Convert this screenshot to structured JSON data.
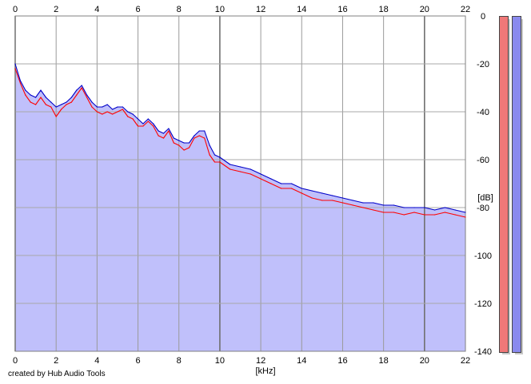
{
  "chart_data": {
    "type": "area",
    "xlabel": "[kHz]",
    "ylabel": "[dB]",
    "xlim": [
      0,
      22
    ],
    "ylim": [
      -140,
      0
    ],
    "x_ticks": [
      0,
      2,
      4,
      6,
      8,
      10,
      12,
      14,
      16,
      18,
      20,
      22
    ],
    "y_ticks": [
      0,
      -20,
      -40,
      -60,
      -80,
      -100,
      -120,
      -140
    ],
    "grid": true,
    "series": [
      {
        "color": "#ff0000",
        "x": [
          0,
          0.25,
          0.5,
          0.75,
          1,
          1.25,
          1.5,
          1.75,
          2,
          2.25,
          2.5,
          2.75,
          3,
          3.25,
          3.5,
          3.75,
          4,
          4.25,
          4.5,
          4.75,
          5,
          5.25,
          5.5,
          5.75,
          6,
          6.25,
          6.5,
          6.75,
          7,
          7.25,
          7.5,
          7.75,
          8,
          8.25,
          8.5,
          8.75,
          9,
          9.25,
          9.5,
          9.75,
          10,
          10.5,
          11,
          11.5,
          12,
          12.5,
          13,
          13.5,
          14,
          14.5,
          15,
          15.5,
          16,
          16.5,
          17,
          17.5,
          18,
          18.5,
          19,
          19.5,
          20,
          20.5,
          21,
          21.5,
          22
        ],
        "values": [
          -22,
          -28,
          -33,
          -36,
          -37,
          -34,
          -37,
          -38,
          -42,
          -39,
          -37,
          -36,
          -33,
          -30,
          -34,
          -38,
          -40,
          -41,
          -40,
          -41,
          -40,
          -39,
          -42,
          -43,
          -46,
          -46,
          -44,
          -46,
          -50,
          -51,
          -48,
          -53,
          -54,
          -56,
          -55,
          -51,
          -50,
          -51,
          -58,
          -61,
          -61,
          -64,
          -65,
          -66,
          -68,
          -70,
          -72,
          -72,
          -74,
          -76,
          -77,
          -77,
          -78,
          -79,
          -80,
          -81,
          -82,
          -82,
          -83,
          -82,
          -83,
          -83,
          -82,
          -83,
          -84
        ]
      },
      {
        "color": "#0000c8",
        "x": [
          0,
          0.25,
          0.5,
          0.75,
          1,
          1.25,
          1.5,
          1.75,
          2,
          2.25,
          2.5,
          2.75,
          3,
          3.25,
          3.5,
          3.75,
          4,
          4.25,
          4.5,
          4.75,
          5,
          5.25,
          5.5,
          5.75,
          6,
          6.25,
          6.5,
          6.75,
          7,
          7.25,
          7.5,
          7.75,
          8,
          8.25,
          8.5,
          8.75,
          9,
          9.25,
          9.5,
          9.75,
          10,
          10.5,
          11,
          11.5,
          12,
          12.5,
          13,
          13.5,
          14,
          14.5,
          15,
          15.5,
          16,
          16.5,
          17,
          17.5,
          18,
          18.5,
          19,
          19.5,
          20,
          20.5,
          21,
          21.5,
          22
        ],
        "values": [
          -20,
          -27,
          -31,
          -33,
          -34,
          -31,
          -34,
          -36,
          -38,
          -37,
          -36,
          -34,
          -31,
          -29,
          -33,
          -36,
          -38,
          -38,
          -37,
          -39,
          -38,
          -38,
          -40,
          -41,
          -43,
          -45,
          -43,
          -45,
          -48,
          -49,
          -47,
          -51,
          -52,
          -53,
          -53,
          -50,
          -48,
          -48,
          -54,
          -58,
          -59,
          -62,
          -63,
          -64,
          -66,
          -68,
          -70,
          -70,
          -72,
          -73,
          -74,
          -75,
          -76,
          -77,
          -78,
          -78,
          -79,
          -79,
          -80,
          -80,
          -80,
          -81,
          -80,
          -81,
          -82
        ]
      }
    ]
  },
  "meters": {
    "left_color": "#f07878",
    "right_color": "#8a8aee",
    "left_level": 1.0,
    "right_level": 1.0
  },
  "credit": "created by Hub Audio Tools"
}
